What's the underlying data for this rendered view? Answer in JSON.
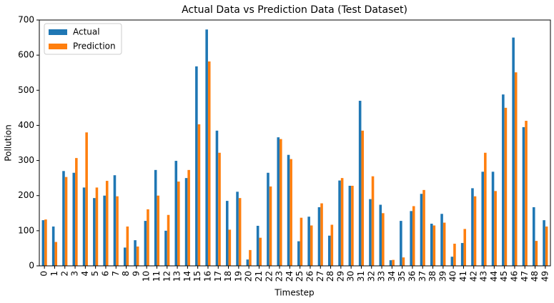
{
  "chart_data": {
    "type": "bar",
    "title": "Actual Data vs Prediction Data (Test Dataset)",
    "x_label": "Timestep",
    "y_label": "Pollution",
    "categories": [
      "0",
      "1",
      "2",
      "3",
      "4",
      "5",
      "6",
      "7",
      "8",
      "9",
      "10",
      "11",
      "12",
      "13",
      "14",
      "15",
      "16",
      "17",
      "18",
      "19",
      "20",
      "21",
      "22",
      "23",
      "24",
      "25",
      "26",
      "27",
      "28",
      "29",
      "30",
      "31",
      "32",
      "33",
      "34",
      "35",
      "36",
      "37",
      "38",
      "39",
      "40",
      "41",
      "42",
      "43",
      "44",
      "45",
      "46",
      "47",
      "48",
      "49"
    ],
    "series": [
      {
        "name": "Actual",
        "color": "#1f77b4",
        "values": [
          130,
          112,
          270,
          265,
          223,
          193,
          200,
          258,
          52,
          73,
          128,
          273,
          100,
          299,
          250,
          568,
          673,
          385,
          185,
          211,
          18,
          114,
          265,
          366,
          316,
          70,
          140,
          167,
          86,
          243,
          228,
          470,
          190,
          174,
          16,
          128,
          156,
          205,
          120,
          148,
          26,
          65,
          221,
          268,
          268,
          488,
          650,
          395,
          167,
          130
        ]
      },
      {
        "name": "Prediction",
        "color": "#ff7f0e",
        "values": [
          132,
          68,
          253,
          307,
          380,
          223,
          242,
          198,
          112,
          55,
          161,
          200,
          145,
          240,
          273,
          403,
          582,
          322,
          103,
          193,
          45,
          80,
          226,
          361,
          304,
          137,
          115,
          178,
          117,
          250,
          228,
          385,
          255,
          150,
          17,
          24,
          170,
          216,
          115,
          123,
          63,
          105,
          198,
          322,
          213,
          450,
          551,
          413,
          71,
          112
        ]
      }
    ],
    "ylim": [
      0,
      700
    ],
    "yticks": [
      0,
      100,
      200,
      300,
      400,
      500,
      600,
      700
    ],
    "grid": false,
    "legend": "upper left"
  }
}
